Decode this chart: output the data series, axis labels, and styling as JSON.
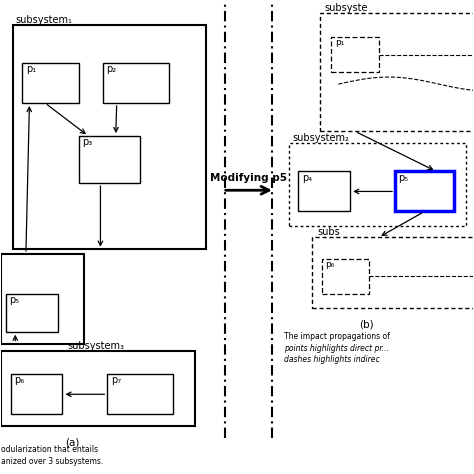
{
  "bg_color": "#ffffff",
  "fig_width": 4.74,
  "fig_height": 4.74,
  "dpi": 100,
  "xlim": [
    0,
    20
  ],
  "ylim": [
    0,
    20
  ]
}
